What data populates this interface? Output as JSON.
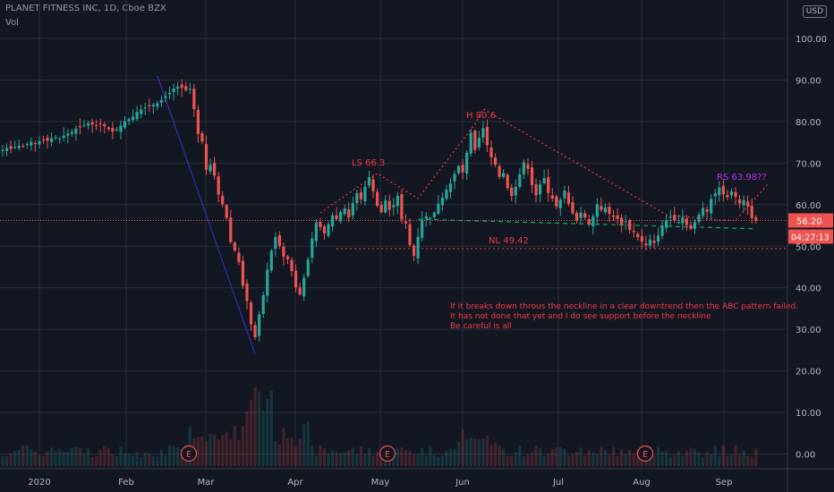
{
  "header": {
    "title": "PLANET FITNESS INC, 1D, Cboe BZX",
    "indicator": "Vol"
  },
  "currency_button": "USD",
  "colors": {
    "background": "#131722",
    "up": "#26a69a",
    "down": "#ef5350",
    "grid": "#2a2e39",
    "text": "#b2b5be",
    "annotation": "#f23645",
    "neckline": "#00b050",
    "purple": "#b42ee6",
    "navy": "#2e2eb8"
  },
  "chart_data": {
    "type": "candlestick",
    "x_ticks": [
      "2020",
      "Feb",
      "Mar",
      "Apr",
      "May",
      "Jun",
      "Jul",
      "Aug",
      "Sep"
    ],
    "y_ticks": [
      "100.00",
      "90.00",
      "80.00",
      "70.00",
      "60.00",
      "50.00",
      "40.00",
      "30.00",
      "20.00",
      "10.00",
      "0.00"
    ],
    "ylim": [
      0,
      100
    ],
    "last_price": "56.20",
    "countdown": "04:27:13",
    "closes": [
      73.2,
      73.6,
      73.4,
      73.9,
      74.2,
      74.0,
      74.6,
      75.1,
      74.8,
      75.3,
      75.6,
      75.4,
      76.0,
      76.2,
      75.9,
      76.6,
      77.1,
      77.5,
      78.3,
      78.8,
      79.2,
      79.6,
      79.3,
      79.0,
      79.4,
      78.9,
      78.2,
      77.6,
      78.1,
      79.0,
      80.1,
      80.6,
      81.2,
      82.3,
      82.9,
      83.4,
      83.8,
      84.1,
      84.4,
      85.2,
      86.1,
      86.9,
      88.0,
      88.4,
      88.1,
      87.6,
      87.9,
      83.0,
      77.0,
      75.2,
      68.4,
      69.6,
      67.0,
      62.5,
      60.1,
      56.8,
      51.0,
      49.0,
      46.2,
      40.5,
      36.8,
      31.2,
      28.1,
      33.6,
      38.2,
      44.3,
      48.9,
      52.2,
      50.1,
      47.5,
      46.9,
      44.0,
      40.1,
      38.4,
      42.4,
      46.8,
      51.8,
      55.7,
      54.6,
      53.1,
      55.3,
      57.4,
      56.5,
      58.2,
      59.1,
      56.9,
      60.4,
      62.8,
      61.3,
      64.3,
      66.6,
      63.2,
      59.7,
      58.2,
      61.0,
      58.8,
      59.9,
      62.1,
      56.4,
      55.5,
      50.3,
      47.7,
      52.3,
      56.4,
      57.2,
      56.8,
      58.1,
      60.2,
      61.7,
      63.6,
      65.1,
      67.4,
      69.3,
      67.8,
      72.5,
      77.3,
      73.2,
      76.1,
      78.4,
      74.3,
      71.4,
      69.6,
      66.7,
      67.6,
      64.0,
      62.1,
      64.3,
      67.3,
      70.2,
      68.6,
      64.7,
      62.2,
      64.9,
      66.4,
      62.8,
      61.5,
      59.6,
      61.2,
      63.4,
      60.2,
      57.9,
      56.3,
      58.1,
      56.9,
      55.4,
      57.2,
      60.1,
      58.7,
      59.3,
      57.8,
      57.1,
      56.6,
      55.3,
      56.0,
      53.9,
      53.4,
      52.2,
      51.1,
      50.2,
      51.6,
      50.8,
      52.6,
      54.8,
      56.3,
      57.1,
      56.2,
      55.8,
      56.9,
      55.1,
      54.2,
      55.8,
      57.6,
      59.2,
      58.3,
      61.4,
      62.7,
      64.1,
      62.5,
      61.8,
      63.2,
      61.9,
      60.3,
      61.1,
      59.6,
      56.8,
      56.2
    ]
  },
  "annotations": {
    "ls": "LS  66.3",
    "h": "H 80.6",
    "rs": "RS 63.98??",
    "nl": "NL 49.42",
    "note_lines": [
      "If it breaks down throus the neckline in a clear downtrend then the ABC pattern failed.",
      "It has not done that yet and I do see support before the neckline",
      "Be careful is all"
    ],
    "earnings_marker": "E"
  }
}
